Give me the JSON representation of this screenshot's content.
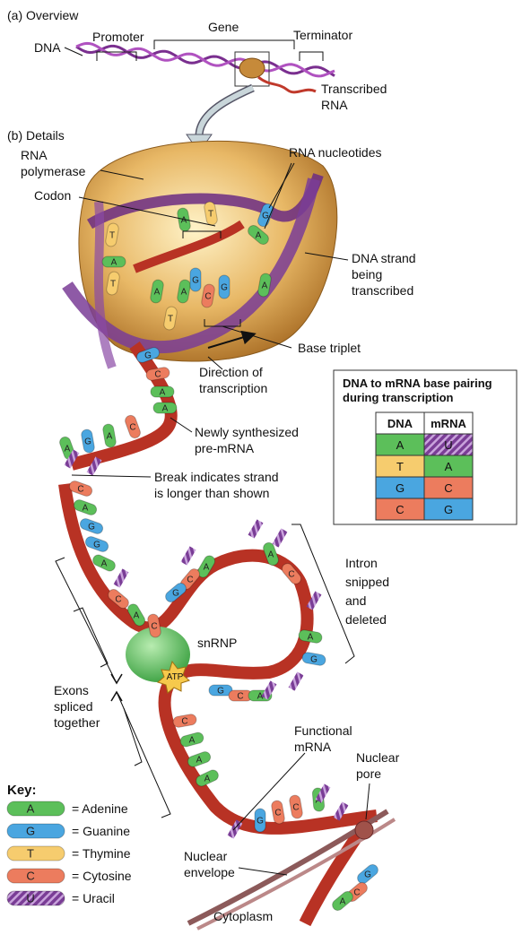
{
  "overview": {
    "title": "(a) Overview",
    "promoter": "Promoter",
    "gene": "Gene",
    "terminator": "Terminator",
    "dna": "DNA",
    "transcribed_rna": [
      "Transcribed",
      "RNA"
    ]
  },
  "details": {
    "title": "(b) Details",
    "rna_polymerase": [
      "RNA",
      "polymerase"
    ],
    "rna_nucleotides": "RNA nucleotides",
    "codon": "Codon",
    "dna_strand": [
      "DNA strand",
      "being",
      "transcribed"
    ],
    "base_triplet": "Base triplet",
    "direction": [
      "Direction of",
      "transcription"
    ],
    "pre_mrna": [
      "Newly synthesized",
      "pre-mRNA"
    ],
    "break_note": [
      "Break indicates strand",
      "is longer than shown"
    ],
    "intron": [
      "Intron",
      "snipped",
      "and",
      "deleted"
    ],
    "snrnp": "snRNP",
    "atp": "ATP",
    "exons": [
      "Exons",
      "spliced",
      "together"
    ],
    "functional_mrna": [
      "Functional",
      "mRNA"
    ],
    "nuclear_pore": [
      "Nuclear",
      "pore"
    ],
    "nuclear_envelope": [
      "Nuclear",
      "envelope"
    ],
    "cytoplasm": "Cytoplasm"
  },
  "bases": [
    "T",
    "A",
    "T",
    "A",
    "T",
    "A",
    "A",
    "G",
    "C",
    "G",
    "A",
    "T",
    "G",
    "A",
    "G",
    "C",
    "A",
    "A",
    "C",
    "A",
    "G",
    "A",
    "C",
    "A",
    "G",
    "G",
    "A",
    "C",
    "A",
    "C",
    "A",
    "C",
    "G",
    "A",
    "C",
    "A",
    "G",
    "G",
    "C",
    "A",
    "C",
    "A",
    "A",
    "A",
    "G",
    "C",
    "C",
    "A",
    "G",
    "C",
    "A"
  ],
  "pairing_table": {
    "title": [
      "DNA to mRNA base pairing",
      "during transcription"
    ],
    "header": [
      "DNA",
      "mRNA"
    ],
    "rows": [
      [
        "A",
        "U"
      ],
      [
        "T",
        "A"
      ],
      [
        "G",
        "C"
      ],
      [
        "C",
        "G"
      ]
    ]
  },
  "key": {
    "title": "Key:",
    "items": [
      {
        "symbol": "A",
        "name": "= Adenine"
      },
      {
        "symbol": "G",
        "name": "= Guanine"
      },
      {
        "symbol": "T",
        "name": "= Thymine"
      },
      {
        "symbol": "C",
        "name": "= Cytosine"
      },
      {
        "symbol": "U",
        "name": "= Uracil"
      }
    ]
  }
}
